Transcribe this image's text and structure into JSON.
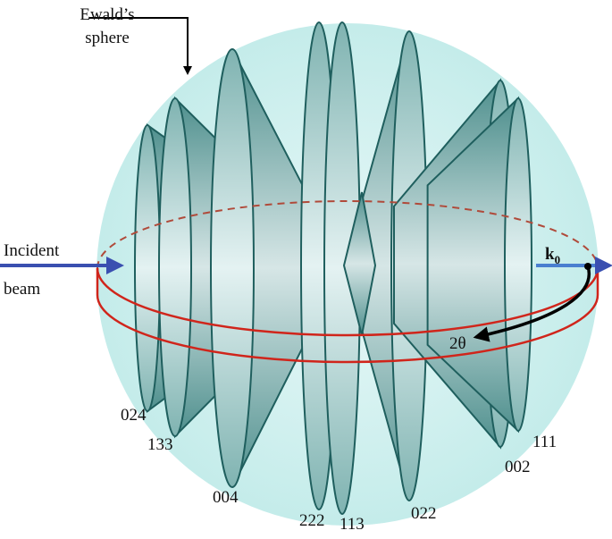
{
  "sphere_label": {
    "line1": "Ewald’s",
    "line2": "sphere"
  },
  "beam_label": {
    "line1": "Incident",
    "line2": "beam"
  },
  "wavevector": {
    "symbol": "k",
    "subscript": "0"
  },
  "angle_label": "2θ",
  "cones": [
    {
      "label": "024"
    },
    {
      "label": "133"
    },
    {
      "label": "004"
    },
    {
      "label": "222"
    },
    {
      "label": "113"
    },
    {
      "label": "022"
    },
    {
      "label": "002"
    },
    {
      "label": "111"
    }
  ]
}
